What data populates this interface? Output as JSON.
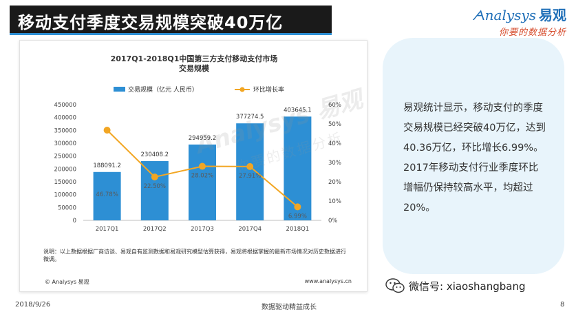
{
  "header": {
    "title": "移动支付季度交易规模突破40万亿",
    "logo_brand": "nalysys",
    "logo_cn": "易观",
    "logo_slogan": "你要的数据分析"
  },
  "chart_data": {
    "type": "bar",
    "title": "2017Q1-2018Q1中国第三方支付移动支付市场",
    "subtitle": "交易规模",
    "categories": [
      "2017Q1",
      "2017Q2",
      "2017Q3",
      "2017Q4",
      "2018Q1"
    ],
    "series": [
      {
        "name": "交易规模（亿元 人民币）",
        "type": "bar",
        "axis": "left",
        "values": [
          188091.2,
          230408.2,
          294959.2,
          377274.5,
          403645.1
        ],
        "labels": [
          "188091.2",
          "230408.2",
          "294959.2",
          "377274.5",
          "403645.1"
        ],
        "color": "#2d8fd4"
      },
      {
        "name": "环比增长率",
        "type": "line",
        "axis": "right",
        "values": [
          46.78,
          22.5,
          28.02,
          27.91,
          6.99
        ],
        "labels": [
          "46.78%",
          "22.50%",
          "28.02%",
          "27.91%",
          "6.99%"
        ],
        "color": "#f2a623"
      }
    ],
    "ylim_left": [
      0,
      450000
    ],
    "yticks_left": [
      "0",
      "50000",
      "100000",
      "150000",
      "200000",
      "250000",
      "300000",
      "350000",
      "400000",
      "450000"
    ],
    "ylim_right": [
      0,
      60
    ],
    "yticks_right": [
      "0%",
      "10%",
      "20%",
      "30%",
      "40%",
      "50%",
      "60%"
    ],
    "legend_position": "top",
    "grid": false
  },
  "chart_note": "说明：以上数据根据厂商访谈、易观自有监测数据和易观研究模型估算获得，易观将根据掌握的最新市场情况对历史数据进行微调。",
  "chart_source": "© Analysys 易观",
  "chart_url": "www.analysys.cn",
  "watermark": {
    "text": "Analysys 易观",
    "sub": "你要的数据分析"
  },
  "summary": "易观统计显示，移动支付的季度交易规模已经突破40万亿，达到40.36万亿，环比增长6.99%。2017年移动支付行业季度环比增幅仍保持较高水平，均超过20%。",
  "wechat": "微信号: xiaoshangbang",
  "footer": {
    "date": "2018/9/26",
    "center": "数据驱动精益成长",
    "page": "8"
  },
  "colors": {
    "bar": "#2d8fd4",
    "line": "#f2a623",
    "panel": "#e8f4fb"
  }
}
